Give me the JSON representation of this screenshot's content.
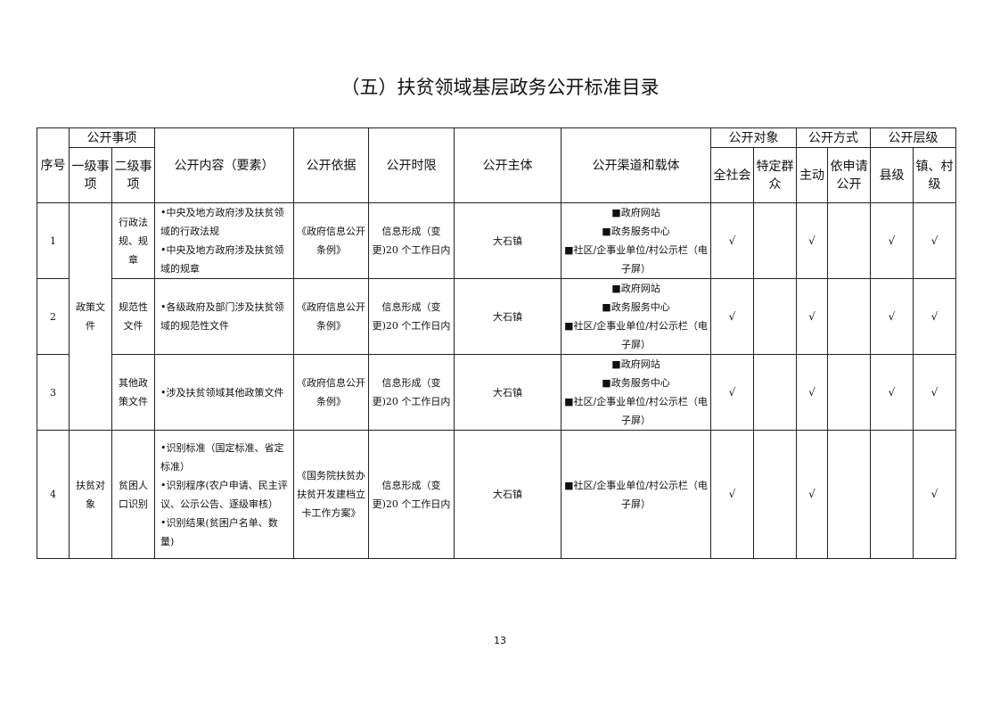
{
  "title": "（五）扶贫领域基层政务公开标准目录",
  "headers": {
    "seq": "序号",
    "items": "公开事项",
    "level1": "一级事项",
    "level2": "二级事项",
    "content": "公开内容（要素）",
    "basis": "公开依据",
    "time_limit": "公开时限",
    "subject": "公开主体",
    "channels": "公开渠道和载体",
    "target": "公开对象",
    "target_all": "全社会",
    "target_specific": "特定群众",
    "method": "公开方式",
    "method_active": "主动",
    "method_request": "依申请公开",
    "level": "公开层级",
    "level_county": "县级",
    "level_town": "镇、村级"
  },
  "rows": [
    {
      "seq": "1",
      "level1": "政策文件",
      "level2": "行政法规、规章",
      "content": [
        "•中央及地方政府涉及扶贫领域的行政法规",
        "•中央及地方政府涉及扶贫领域的规章"
      ],
      "basis": "《政府信息公开条例》",
      "time_limit": "信息形成（变更)20 个工作日内",
      "subject": "大石镇",
      "channels": [
        "■政府网站",
        "■政务服务中心",
        "■社区/企事业单位/村公示栏（电子屏）"
      ],
      "all": "√",
      "specific": "",
      "active": "√",
      "request": "",
      "county": "√",
      "town": "√"
    },
    {
      "seq": "2",
      "level2": "规范性文件",
      "content": [
        "•各级政府及部门涉及扶贫领域的规范性文件"
      ],
      "basis": "《政府信息公开条例》",
      "time_limit": "信息形成（变更)20 个工作日内",
      "subject": "大石镇",
      "channels": [
        "■政府网站",
        "■政务服务中心",
        "■社区/企事业单位/村公示栏（电子屏）"
      ],
      "all": "√",
      "specific": "",
      "active": "√",
      "request": "",
      "county": "√",
      "town": "√"
    },
    {
      "seq": "3",
      "level2": "其他政策文件",
      "content": [
        "•涉及扶贫领域其他政策文件"
      ],
      "basis": "《政府信息公开条例》",
      "time_limit": "信息形成（变更)20 个工作日内",
      "subject": "大石镇",
      "channels": [
        "■政府网站",
        "■政务服务中心",
        "■社区/企事业单位/村公示栏（电子屏）"
      ],
      "all": "√",
      "specific": "",
      "active": "√",
      "request": "",
      "county": "√",
      "town": "√"
    },
    {
      "seq": "4",
      "level1": "扶贫对象",
      "level2": "贫困人口识别",
      "content": [
        "•识别标准（国定标准、省定标准）",
        "•识别程序(农户申请、民主评议、公示公告、逐级审核）",
        "•识别结果(贫困户名单、数量)"
      ],
      "basis": "《国务院扶贫办扶贫开发建档立卡工作方案》",
      "time_limit": "信息形成（变更)20 个工作日内",
      "subject": "大石镇",
      "channels": [
        "■社区/企事业单位/村公示栏（电子屏）"
      ],
      "all": "√",
      "specific": "",
      "active": "√",
      "request": "",
      "county": "",
      "town": "√"
    }
  ],
  "page_number": "13"
}
